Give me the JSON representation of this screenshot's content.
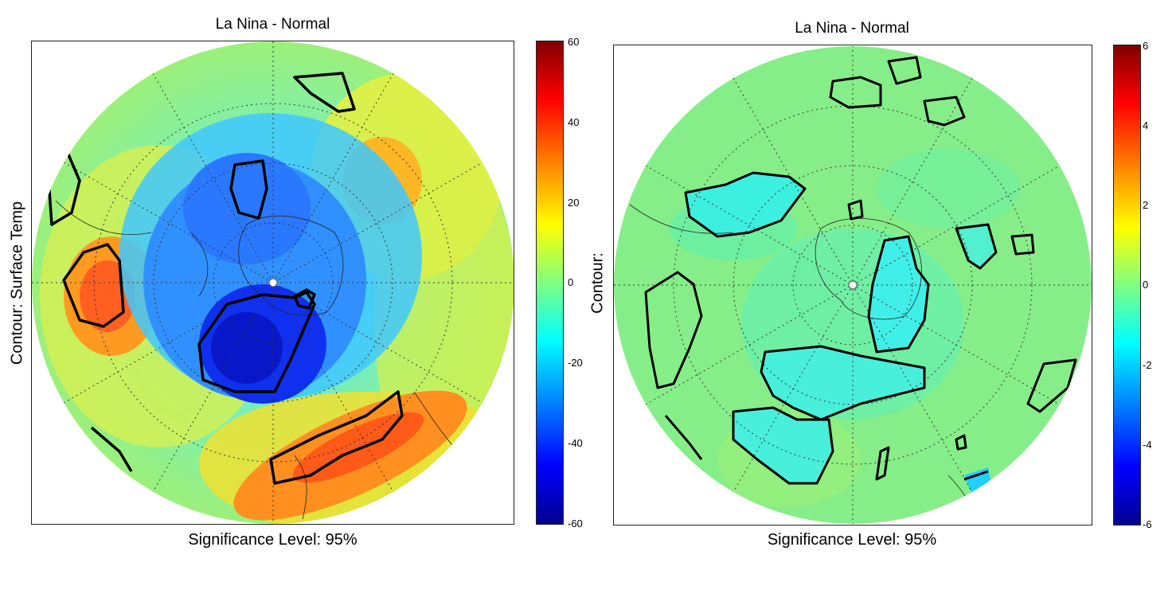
{
  "panels": [
    {
      "title": "La Nina - Normal",
      "ylabel": "Contour: Surface Temp",
      "footer": "Significance Level: 95%",
      "colorbar": {
        "ticks": [
          "60",
          "40",
          "20",
          "0",
          "-20",
          "-40",
          "-60"
        ]
      }
    },
    {
      "title": "La Nina - Normal",
      "ylabel": "Contour:",
      "footer": "Significance Level: 95%",
      "colorbar": {
        "ticks": [
          "6",
          "4",
          "2",
          "0",
          "-2",
          "-4",
          "-6"
        ]
      }
    }
  ],
  "colors": {
    "jet": [
      "#00008f",
      "#0000ff",
      "#0080ff",
      "#00ffff",
      "#80ff80",
      "#ffff00",
      "#ff8000",
      "#ff0000",
      "#800000"
    ],
    "map_background_left": "#7bf0a8",
    "map_background_right": "#86f08a"
  }
}
